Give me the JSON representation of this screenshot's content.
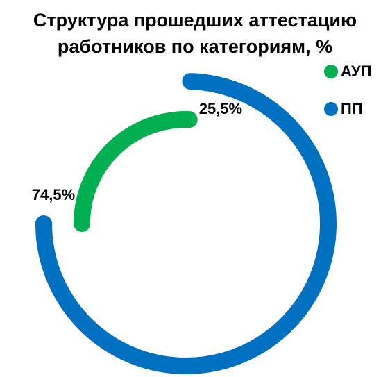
{
  "chart_data": {
    "type": "radial-bar",
    "title": "Структура прошедших аттестацию работников по категориям, %",
    "categories": [
      "АУП",
      "ПП"
    ],
    "values": [
      25.5,
      74.5
    ],
    "value_labels": [
      "25,5%",
      "74,5%"
    ],
    "colors": [
      "#00b050",
      "#0070c0"
    ],
    "legend": "top-right"
  }
}
